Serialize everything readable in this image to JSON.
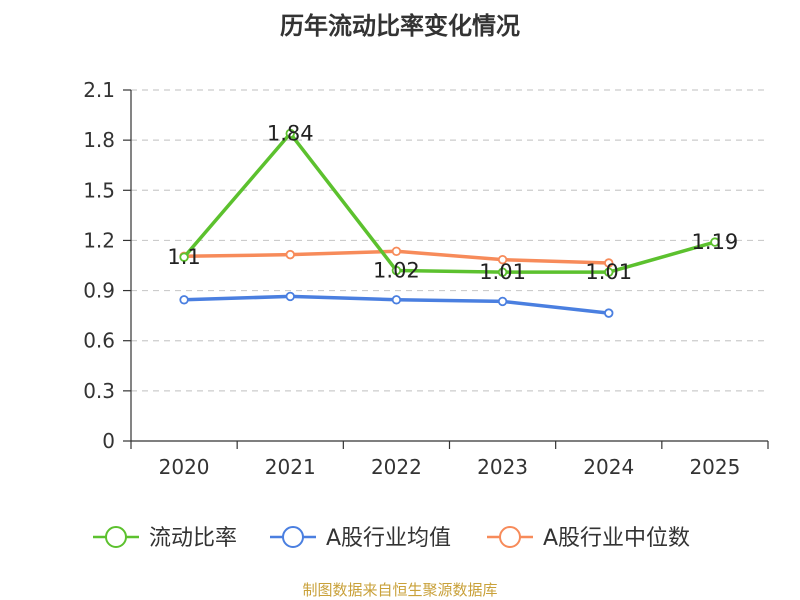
{
  "chart_data": {
    "type": "line",
    "title": "历年流动比率变化情况",
    "categories": [
      "2020",
      "2021",
      "2022",
      "2023",
      "2024",
      "2025"
    ],
    "ylim": [
      0,
      2.1
    ],
    "yticks": [
      0,
      0.3,
      0.6,
      0.9,
      1.2,
      1.5,
      1.8,
      2.1
    ],
    "ytick_labels": [
      "0",
      "0.3",
      "0.6",
      "0.9",
      "1.2",
      "1.5",
      "1.8",
      "2.1"
    ],
    "grid": true,
    "legend_position": "bottom",
    "series": [
      {
        "name": "流动比率",
        "color": "#5cc12e",
        "values": [
          1.1,
          1.84,
          1.02,
          1.01,
          1.01,
          1.19
        ],
        "labels": [
          "1.1",
          "1.84",
          "1.02",
          "1.01",
          "1.01",
          "1.19"
        ],
        "show_labels": true
      },
      {
        "name": "A股行业均值",
        "color": "#4a7fe0",
        "values": [
          0.845,
          0.865,
          0.845,
          0.835,
          0.765,
          null
        ],
        "show_labels": false
      },
      {
        "name": "A股行业中位数",
        "color": "#f78b5a",
        "values": [
          1.105,
          1.115,
          1.135,
          1.085,
          1.065,
          null
        ],
        "show_labels": false
      }
    ],
    "source": "制图数据来自恒生聚源数据库"
  }
}
